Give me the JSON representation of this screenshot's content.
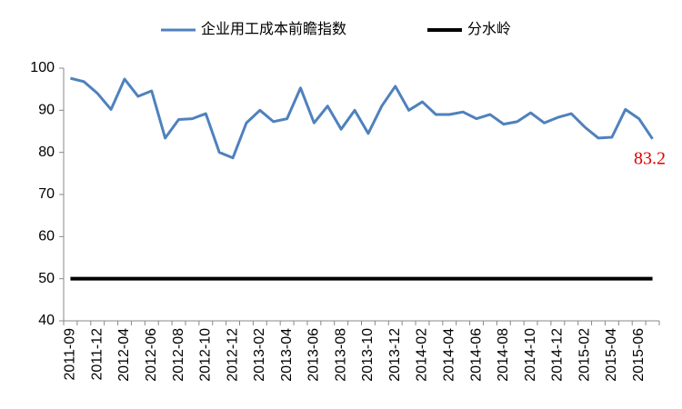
{
  "chart_data": {
    "type": "line",
    "categories": [
      "2011-09",
      null,
      "2011-12",
      null,
      "2012-04",
      null,
      "2012-06",
      null,
      "2012-08",
      null,
      "2012-10",
      null,
      "2012-12",
      null,
      "2013-02",
      null,
      "2013-04",
      null,
      "2013-06",
      null,
      "2013-08",
      null,
      "2013-10",
      null,
      "2013-12",
      null,
      "2014-02",
      null,
      "2014-04",
      null,
      "2014-06",
      null,
      "2014-08",
      null,
      "2014-10",
      null,
      "2014-12",
      null,
      "2015-02",
      null,
      "2015-04",
      null,
      "2015-06",
      null
    ],
    "series": [
      {
        "name": "企业用工成本前瞻指数",
        "color": "#4f81bd",
        "values": [
          97.6,
          96.8,
          94,
          90.2,
          97.4,
          93.3,
          94.6,
          83.4,
          87.8,
          88,
          89.2,
          80,
          78.7,
          87,
          90,
          87.3,
          88,
          95.3,
          87,
          91,
          85.5,
          90,
          84.5,
          91,
          95.7,
          90,
          92,
          89,
          89,
          89.6,
          88,
          89,
          86.7,
          87.3,
          89.4,
          87,
          88.3,
          89.2,
          86,
          83.4,
          83.6,
          90.2,
          88,
          83.2
        ]
      },
      {
        "name": "分水岭",
        "color": "#000000",
        "values": [
          50,
          50,
          50,
          50,
          50,
          50,
          50,
          50,
          50,
          50,
          50,
          50,
          50,
          50,
          50,
          50,
          50,
          50,
          50,
          50,
          50,
          50,
          50,
          50,
          50,
          50,
          50,
          50,
          50,
          50,
          50,
          50,
          50,
          50,
          50,
          50,
          50,
          50,
          50,
          50,
          50,
          50,
          50,
          50
        ]
      }
    ],
    "ylim": [
      40,
      100
    ],
    "yticks": [
      40,
      50,
      60,
      70,
      80,
      90,
      100
    ],
    "grid": false,
    "legend": "top"
  }
}
